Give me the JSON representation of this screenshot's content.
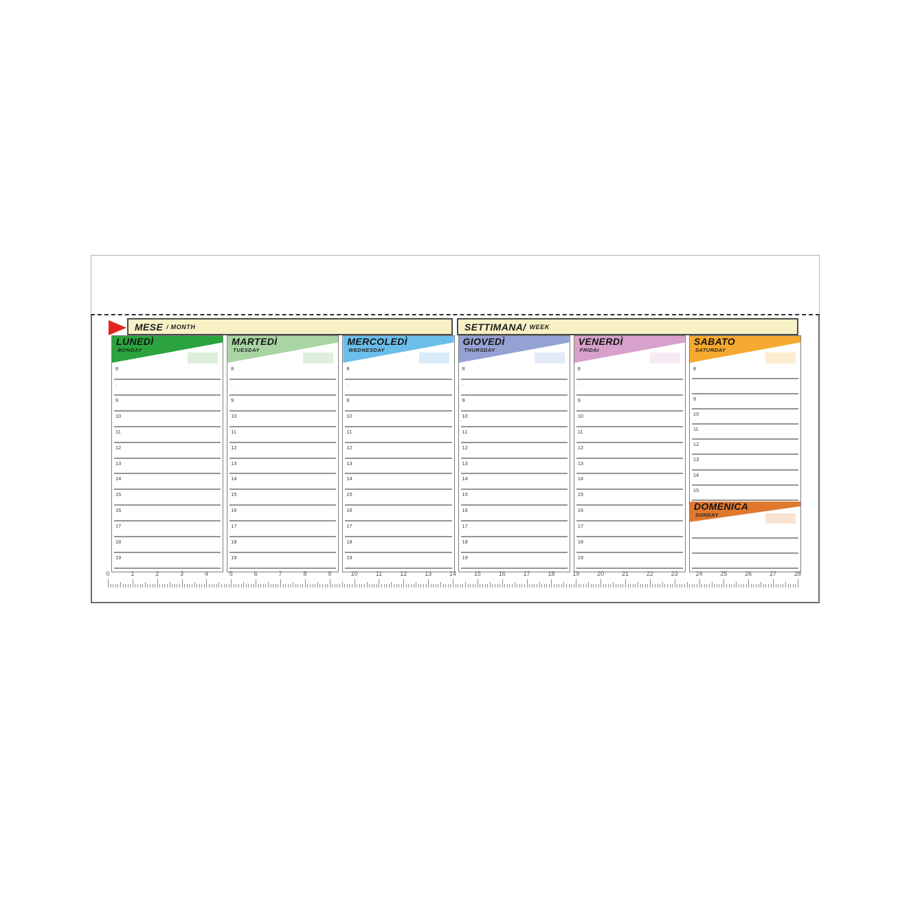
{
  "header": {
    "mese_label": "MESE",
    "mese_sub": "/ MONTH",
    "settimana_label": "SETTIMANA/",
    "settimana_sub": "WEEK"
  },
  "icons": {
    "flag": "red-triangle-flag"
  },
  "colors": {
    "flag_red": "#e3231d",
    "label_bar_bg": "#f8f1c6",
    "line_gray": "#949494"
  },
  "days": [
    {
      "slug": "lunedi",
      "name": "LUNEDÌ",
      "english": "MONDAY",
      "color": "#2ba33e",
      "pale": "#dcefdb",
      "hours": [
        "8",
        "·",
        "9",
        "10",
        "11",
        "12",
        "13",
        "14",
        "15",
        "16",
        "17",
        "18",
        "19"
      ]
    },
    {
      "slug": "martedi",
      "name": "MARTEDÌ",
      "english": "TUESDAY",
      "color": "#a9d4a3",
      "pale": "#def0dd",
      "hours": [
        "8",
        "·",
        "9",
        "10",
        "11",
        "12",
        "13",
        "14",
        "15",
        "16",
        "17",
        "18",
        "19"
      ]
    },
    {
      "slug": "mercoledi",
      "name": "MERCOLEDÌ",
      "english": "WEDNESDAY",
      "color": "#6bbdea",
      "pale": "#d9ecf9",
      "hours": [
        "8",
        "·",
        "9",
        "10",
        "11",
        "12",
        "13",
        "14",
        "15",
        "16",
        "17",
        "18",
        "19"
      ]
    },
    {
      "slug": "giovedi",
      "name": "GIOVEDÌ",
      "english": "THURSDAY",
      "color": "#93a1d3",
      "pale": "#e4e9f6",
      "hours": [
        "8",
        "·",
        "9",
        "10",
        "11",
        "12",
        "13",
        "14",
        "15",
        "16",
        "17",
        "18",
        "19"
      ]
    },
    {
      "slug": "venerdi",
      "name": "VENERDÌ",
      "english": "FRIDAI",
      "color": "#d7a1cb",
      "pale": "#f8eaf5",
      "hours": [
        "8",
        "·",
        "9",
        "10",
        "11",
        "12",
        "13",
        "14",
        "15",
        "16",
        "17",
        "18",
        "19"
      ]
    },
    {
      "slug": "sabato",
      "name": "SABATO",
      "english": "SATURDAY",
      "color": "#f6a930",
      "pale": "#fdecce",
      "hours": [
        "8",
        "·",
        "9",
        "10",
        "11",
        "12",
        "13",
        "14",
        "15"
      ],
      "sunday": {
        "slug": "domenica",
        "name": "DOMENICA",
        "english": "SUNDAY",
        "color": "#e0792f",
        "pale": "#fae3d0",
        "blank_rows": 3
      }
    }
  ],
  "ruler": {
    "numbers": [
      "0",
      "1",
      "2",
      "3",
      "4",
      "5",
      "6",
      "7",
      "8",
      "9",
      "10",
      "11",
      "12",
      "13",
      "14",
      "15",
      "16",
      "17",
      "18",
      "19",
      "20",
      "21",
      "22",
      "23",
      "24",
      "25",
      "26",
      "27",
      "28"
    ],
    "unit": "cm"
  }
}
